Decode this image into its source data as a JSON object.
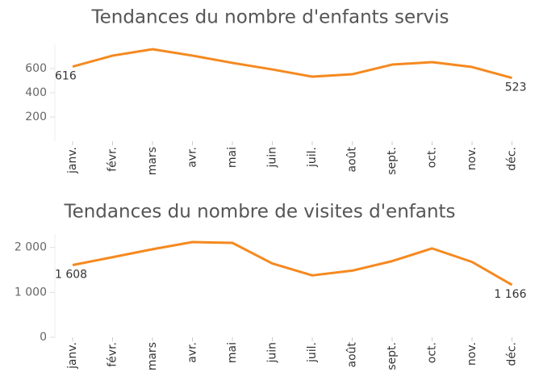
{
  "chart_data": [
    {
      "type": "line",
      "title": "Tendances du nombre d'enfants servis",
      "categories": [
        "janv.",
        "févr.",
        "mars",
        "avr.",
        "mai",
        "juin",
        "juil.",
        "août",
        "sept.",
        "oct.",
        "nov.",
        "déc."
      ],
      "series": [
        {
          "color": "#f5891f",
          "values": [
            616,
            707,
            760,
            707,
            647,
            593,
            533,
            553,
            633,
            653,
            613,
            523
          ]
        }
      ],
      "ylim": [
        0,
        800
      ],
      "yticks": [
        200,
        400,
        600
      ]
    },
    {
      "type": "line",
      "title": "Tendances du nombre de visites d'enfants",
      "categories": [
        "janv.",
        "févr.",
        "mars",
        "avr.",
        "mai",
        "juin",
        "juil.",
        "août",
        "sept.",
        "oct.",
        "nov.",
        "déc."
      ],
      "series": [
        {
          "color": "#f5891f",
          "values": [
            1608,
            1784,
            1961,
            2120,
            2102,
            1643,
            1378,
            1484,
            1696,
            1979,
            1678,
            1166
          ],
          "value_labels": [
            "1 608",
            null,
            null,
            null,
            null,
            null,
            null,
            null,
            null,
            null,
            null,
            "1 166"
          ]
        }
      ],
      "ylim": [
        0,
        2300
      ],
      "yticks": [
        0,
        {
          "value": 1000,
          "label": "1 000"
        },
        {
          "value": 2000,
          "label": "2 000"
        }
      ]
    }
  ]
}
